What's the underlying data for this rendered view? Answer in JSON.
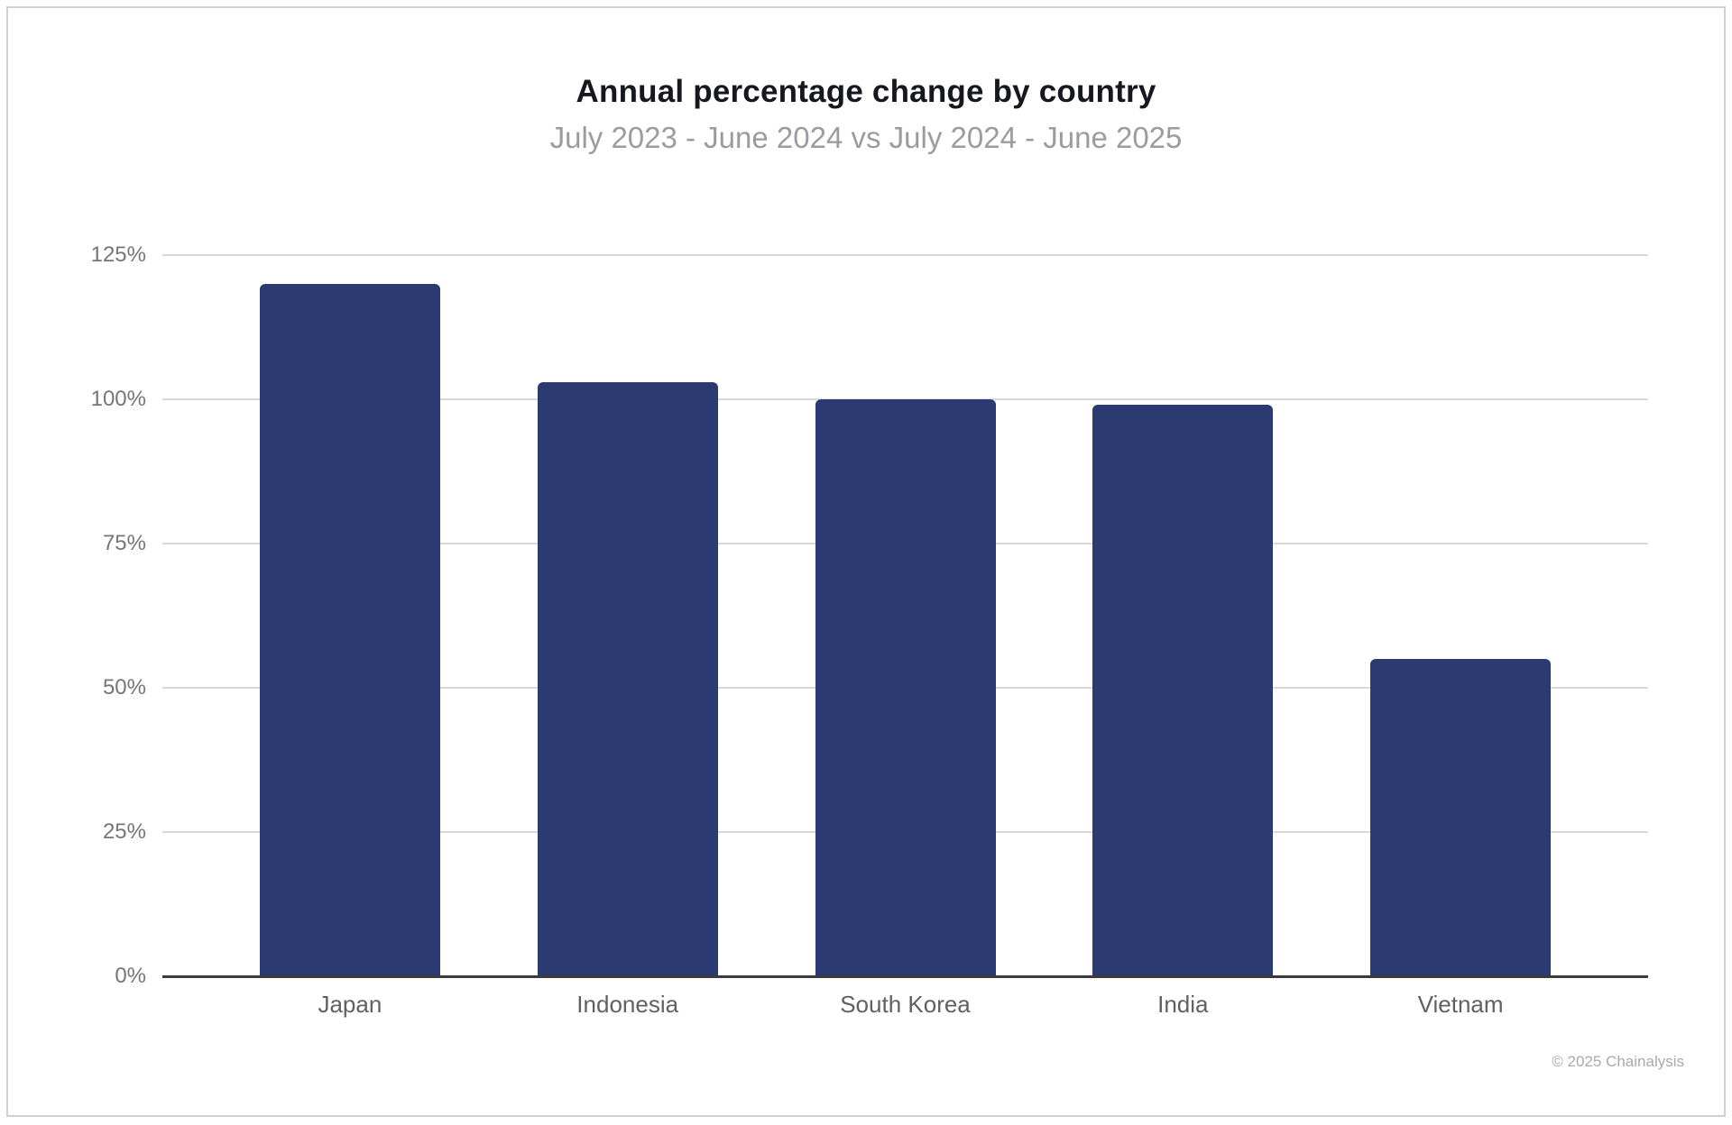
{
  "header": {
    "title": "Annual percentage change by country",
    "subtitle": "July 2023 - June 2024 vs July 2024 - June 2025"
  },
  "footer": {
    "copyright": "© 2025 Chainalysis"
  },
  "colors": {
    "bar": "#2b3a71",
    "gridline": "#d9d9d9",
    "axis_line": "#3a3a3f",
    "title_text": "#17171f",
    "subtitle_text": "#9b9ba2",
    "y_tick_text": "#75757a",
    "x_tick_text": "#606066",
    "copyright_text": "#a9a9ae",
    "frame_border": "#d2d2d2",
    "background": "#ffffff"
  },
  "chart_data": {
    "type": "bar",
    "title": "Annual percentage change by country",
    "subtitle": "July 2023 - June 2024 vs July 2024 - June 2025",
    "categories": [
      "Japan",
      "Indonesia",
      "South Korea",
      "India",
      "Vietnam"
    ],
    "values": [
      120,
      103,
      100,
      99,
      55
    ],
    "unit": "%",
    "xlabel": "",
    "ylabel": "",
    "ylim": [
      0,
      125
    ],
    "y_ticks": [
      0,
      25,
      50,
      75,
      100,
      125
    ],
    "y_tick_labels": [
      "0%",
      "25%",
      "50%",
      "75%",
      "100%",
      "125%"
    ],
    "grid": "horizontal",
    "legend": "none"
  }
}
